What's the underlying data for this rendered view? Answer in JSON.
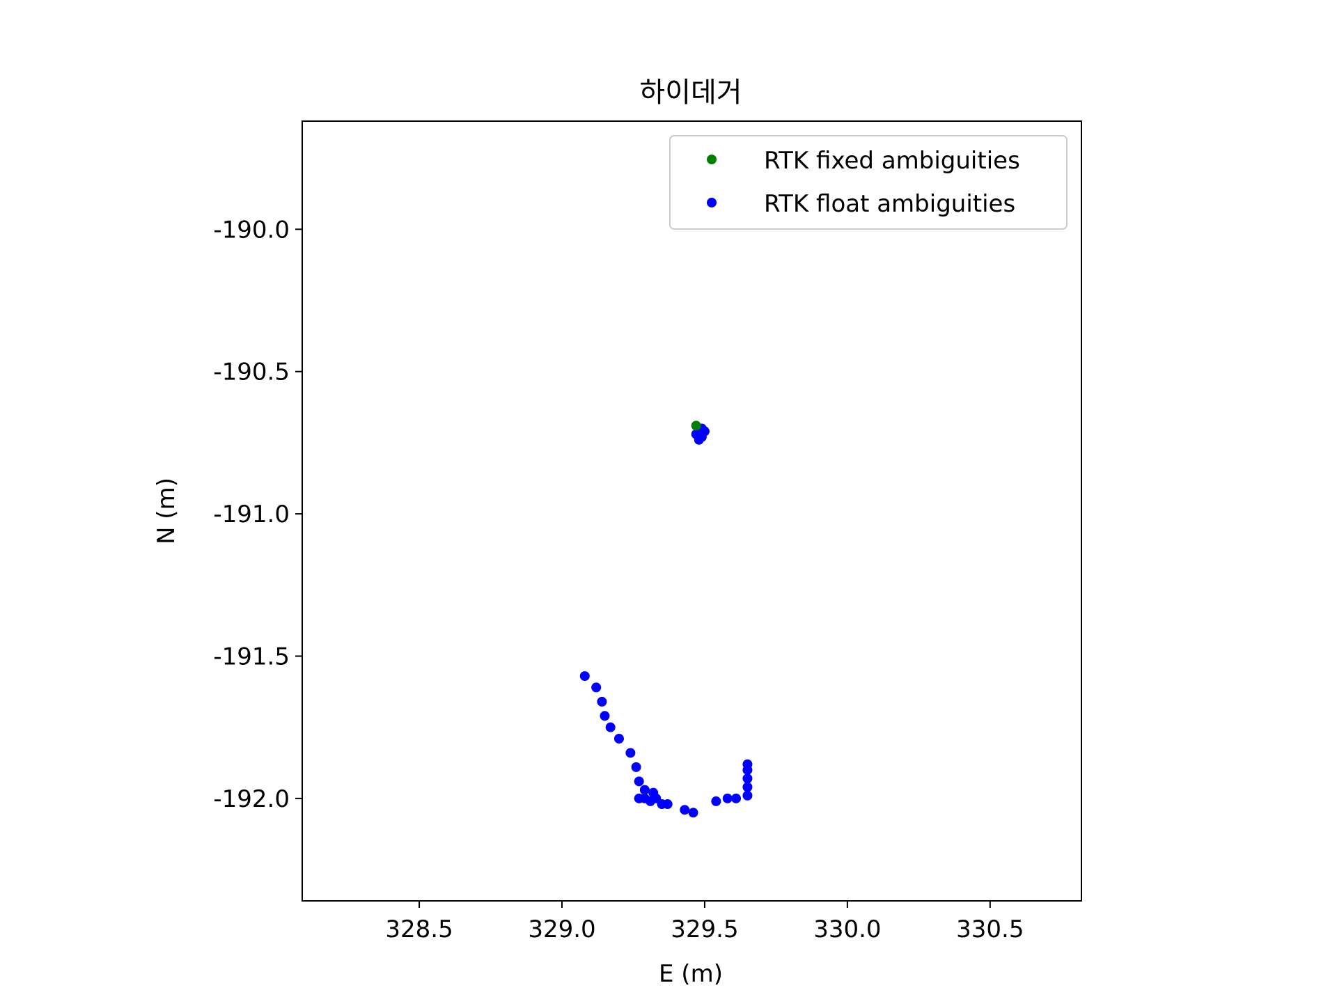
{
  "chart_data": {
    "type": "scatter",
    "title": "하이데거",
    "xlabel": "E (m)",
    "ylabel": "N (m)",
    "xlim": [
      328.09,
      330.82
    ],
    "ylim": [
      -192.36,
      -189.62
    ],
    "xticks": [
      328.5,
      329.0,
      329.5,
      330.0,
      330.5
    ],
    "yticks": [
      -190.0,
      -190.5,
      -191.0,
      -191.5,
      -192.0
    ],
    "xtick_labels": [
      "328.5",
      "329.0",
      "329.5",
      "330.0",
      "330.5"
    ],
    "ytick_labels": [
      "-190.0",
      "-190.5",
      "-191.0",
      "-191.5",
      "-192.0"
    ],
    "grid": false,
    "legend_position": "top-right",
    "series": [
      {
        "name": "RTK fixed ambiguities",
        "color": "#008000",
        "points": [
          {
            "x": 329.47,
            "y": -190.69
          }
        ]
      },
      {
        "name": "RTK float ambiguities",
        "color": "#0000ff",
        "points": [
          {
            "x": 329.48,
            "y": -190.71
          },
          {
            "x": 329.49,
            "y": -190.7
          },
          {
            "x": 329.47,
            "y": -190.72
          },
          {
            "x": 329.49,
            "y": -190.73
          },
          {
            "x": 329.48,
            "y": -190.74
          },
          {
            "x": 329.5,
            "y": -190.71
          },
          {
            "x": 329.08,
            "y": -191.57
          },
          {
            "x": 329.12,
            "y": -191.61
          },
          {
            "x": 329.14,
            "y": -191.66
          },
          {
            "x": 329.15,
            "y": -191.71
          },
          {
            "x": 329.17,
            "y": -191.75
          },
          {
            "x": 329.2,
            "y": -191.79
          },
          {
            "x": 329.24,
            "y": -191.84
          },
          {
            "x": 329.26,
            "y": -191.89
          },
          {
            "x": 329.27,
            "y": -191.94
          },
          {
            "x": 329.29,
            "y": -191.97
          },
          {
            "x": 329.32,
            "y": -191.98
          },
          {
            "x": 329.27,
            "y": -192.0
          },
          {
            "x": 329.29,
            "y": -192.0
          },
          {
            "x": 329.31,
            "y": -192.01
          },
          {
            "x": 329.33,
            "y": -192.0
          },
          {
            "x": 329.35,
            "y": -192.02
          },
          {
            "x": 329.37,
            "y": -192.02
          },
          {
            "x": 329.43,
            "y": -192.04
          },
          {
            "x": 329.46,
            "y": -192.05
          },
          {
            "x": 329.54,
            "y": -192.01
          },
          {
            "x": 329.58,
            "y": -192.0
          },
          {
            "x": 329.61,
            "y": -192.0
          },
          {
            "x": 329.65,
            "y": -191.99
          },
          {
            "x": 329.65,
            "y": -191.96
          },
          {
            "x": 329.65,
            "y": -191.93
          },
          {
            "x": 329.65,
            "y": -191.9
          },
          {
            "x": 329.65,
            "y": -191.88
          }
        ]
      }
    ]
  }
}
